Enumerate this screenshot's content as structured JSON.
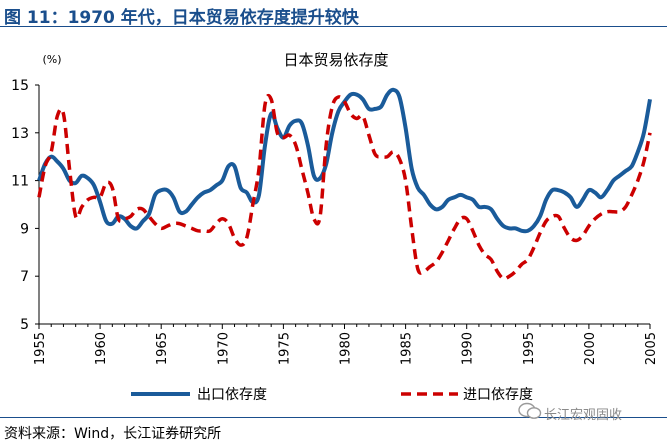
{
  "header": {
    "title": "图 11：1970 年代，日本贸易依存度提升较快"
  },
  "footer": {
    "source": "资料来源：Wind，长江证券研究所",
    "watermark": "长江宏观固收"
  },
  "chart_data": {
    "type": "line",
    "title": "日本贸易依存度",
    "ylabel": "(%)",
    "xlabel": "",
    "xlim": [
      1955,
      2005
    ],
    "ylim": [
      5,
      15
    ],
    "x_ticks": [
      "1955",
      "1960",
      "1965",
      "1970",
      "1975",
      "1980",
      "1985",
      "1990",
      "1995",
      "2000",
      "2005"
    ],
    "y_ticks": [
      "5",
      "7",
      "9",
      "11",
      "13",
      "15"
    ],
    "legend_position": "bottom",
    "grid": false,
    "colors": {
      "export": "#1a5b9a",
      "import": "#cc0000",
      "header": "#1a4e8c"
    },
    "series": [
      {
        "name": "出口依存度",
        "style": "solid",
        "x": [
          1955,
          1955.5,
          1956,
          1956.5,
          1957,
          1957.5,
          1958,
          1958.5,
          1959,
          1959.5,
          1960,
          1960.5,
          1961,
          1961.5,
          1962,
          1962.5,
          1963,
          1963.5,
          1964,
          1964.5,
          1965,
          1965.5,
          1966,
          1966.5,
          1967,
          1967.5,
          1968,
          1968.5,
          1969,
          1969.5,
          1970,
          1970.5,
          1971,
          1971.5,
          1972,
          1972.5,
          1973,
          1973.5,
          1974,
          1974.5,
          1975,
          1975.5,
          1976,
          1976.5,
          1977,
          1977.5,
          1978,
          1978.5,
          1979,
          1979.5,
          1980,
          1980.5,
          1981,
          1981.5,
          1982,
          1982.5,
          1983,
          1983.5,
          1984,
          1984.5,
          1985,
          1985.5,
          1986,
          1986.5,
          1987,
          1987.5,
          1988,
          1988.5,
          1989,
          1989.5,
          1990,
          1990.5,
          1991,
          1991.5,
          1992,
          1992.5,
          1993,
          1993.5,
          1994,
          1994.5,
          1995,
          1995.5,
          1996,
          1996.5,
          1997,
          1997.5,
          1998,
          1998.5,
          1999,
          1999.5,
          2000,
          2000.5,
          2001,
          2001.5,
          2002,
          2002.5,
          2003,
          2003.5,
          2004,
          2004.5,
          2005
        ],
        "values": [
          11.0,
          11.7,
          12.0,
          11.8,
          11.5,
          11.0,
          10.9,
          11.2,
          11.1,
          10.8,
          10.1,
          9.3,
          9.2,
          9.5,
          9.4,
          9.1,
          9.0,
          9.3,
          9.6,
          10.4,
          10.6,
          10.6,
          10.3,
          9.7,
          9.7,
          10.0,
          10.3,
          10.5,
          10.6,
          10.8,
          11.0,
          11.6,
          11.6,
          10.7,
          10.5,
          10.1,
          10.4,
          12.5,
          13.8,
          13.2,
          12.8,
          13.3,
          13.5,
          13.4,
          12.5,
          11.2,
          11.1,
          11.7,
          13.0,
          13.9,
          14.3,
          14.6,
          14.6,
          14.4,
          14.0,
          14.0,
          14.1,
          14.6,
          14.8,
          14.5,
          13.2,
          11.5,
          10.7,
          10.4,
          10.0,
          9.8,
          9.9,
          10.2,
          10.3,
          10.4,
          10.3,
          10.2,
          9.9,
          9.9,
          9.8,
          9.4,
          9.1,
          9.0,
          9.0,
          8.9,
          8.9,
          9.1,
          9.5,
          10.2,
          10.6,
          10.6,
          10.5,
          10.3,
          9.9,
          10.2,
          10.6,
          10.5,
          10.3,
          10.6,
          11.0,
          11.2,
          11.4,
          11.6,
          12.2,
          13.0,
          14.4
        ]
      },
      {
        "name": "进口依存度",
        "style": "dashed",
        "x": [
          1955,
          1955.5,
          1956,
          1956.5,
          1957,
          1957.5,
          1958,
          1958.5,
          1959,
          1959.5,
          1960,
          1960.5,
          1961,
          1961.5,
          1962,
          1962.5,
          1963,
          1963.5,
          1964,
          1964.5,
          1965,
          1965.5,
          1966,
          1966.5,
          1967,
          1967.5,
          1968,
          1968.5,
          1969,
          1969.5,
          1970,
          1970.5,
          1971,
          1971.5,
          1972,
          1972.5,
          1973,
          1973.5,
          1974,
          1974.5,
          1975,
          1975.5,
          1976,
          1976.5,
          1977,
          1977.5,
          1978,
          1978.5,
          1979,
          1979.5,
          1980,
          1980.5,
          1981,
          1981.5,
          1982,
          1982.5,
          1983,
          1983.5,
          1984,
          1984.5,
          1985,
          1985.5,
          1986,
          1986.5,
          1987,
          1987.5,
          1988,
          1988.5,
          1989,
          1989.5,
          1990,
          1990.5,
          1991,
          1991.5,
          1992,
          1992.5,
          1993,
          1993.5,
          1994,
          1994.5,
          1995,
          1995.5,
          1996,
          1996.5,
          1997,
          1997.5,
          1998,
          1998.5,
          1999,
          1999.5,
          2000,
          2000.5,
          2001,
          2001.5,
          2002,
          2002.5,
          2003,
          2003.5,
          2004,
          2004.5,
          2005
        ],
        "values": [
          10.3,
          11.6,
          12.2,
          13.7,
          13.8,
          11.5,
          9.5,
          9.9,
          10.2,
          10.3,
          10.3,
          10.9,
          10.7,
          9.4,
          9.4,
          9.5,
          9.8,
          9.8,
          9.5,
          9.2,
          9.0,
          9.1,
          9.2,
          9.2,
          9.1,
          9.0,
          8.9,
          8.9,
          8.9,
          9.2,
          9.4,
          9.2,
          8.6,
          8.3,
          8.6,
          10.0,
          11.5,
          14.2,
          14.4,
          13.0,
          12.8,
          12.9,
          12.5,
          11.5,
          10.5,
          9.4,
          9.5,
          12.5,
          14.1,
          14.5,
          14.3,
          13.8,
          13.6,
          13.7,
          12.9,
          12.1,
          12.0,
          12.0,
          12.2,
          11.9,
          11.0,
          9.0,
          7.3,
          7.2,
          7.4,
          7.6,
          8.0,
          8.5,
          9.0,
          9.4,
          9.4,
          8.9,
          8.3,
          7.9,
          7.7,
          7.2,
          6.9,
          7.0,
          7.2,
          7.5,
          7.7,
          8.2,
          8.8,
          9.3,
          9.5,
          9.5,
          9.0,
          8.6,
          8.5,
          8.7,
          9.1,
          9.4,
          9.6,
          9.7,
          9.7,
          9.7,
          9.9,
          10.4,
          11.0,
          11.8,
          13.0
        ]
      }
    ]
  }
}
